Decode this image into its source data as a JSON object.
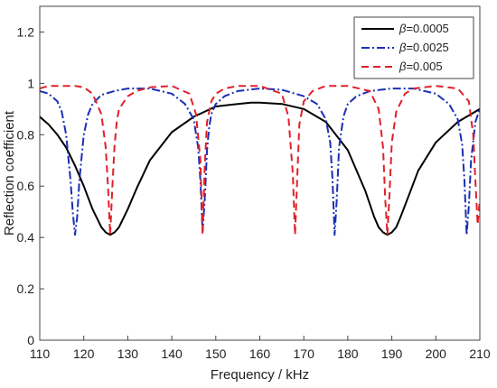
{
  "chart_data": {
    "type": "line",
    "title": "",
    "xlabel": "Frequency / kHz",
    "ylabel": "Reflection coefficient",
    "xlim": [
      110,
      210
    ],
    "ylim": [
      0,
      1.3
    ],
    "xticks": [
      110,
      120,
      130,
      140,
      150,
      160,
      170,
      180,
      190,
      200,
      210
    ],
    "yticks": [
      0,
      0.2,
      0.4,
      0.6,
      0.8,
      1,
      1.2
    ],
    "xtick_labels": [
      "110",
      "120",
      "130",
      "140",
      "150",
      "160",
      "170",
      "180",
      "190",
      "200",
      "210"
    ],
    "ytick_labels": [
      "0",
      "0.2",
      "0.4",
      "0.6",
      "0.8",
      "1",
      "1.2"
    ],
    "grid": false,
    "legend_position": "top-right",
    "series": [
      {
        "name": "β=0.0005",
        "legend_symbol": "β",
        "legend_value": "=0.0005",
        "color": "#000000",
        "dash": "solid",
        "x": [
          110,
          112,
          114,
          116,
          118,
          120,
          122,
          124,
          125,
          126,
          127,
          128,
          130,
          132,
          135,
          140,
          145,
          150,
          155,
          158,
          160,
          165,
          170,
          175,
          180,
          184,
          186,
          187,
          188,
          189,
          190,
          191,
          192,
          194,
          196,
          200,
          205,
          210
        ],
        "y": [
          0.87,
          0.84,
          0.8,
          0.75,
          0.68,
          0.6,
          0.51,
          0.44,
          0.42,
          0.41,
          0.42,
          0.44,
          0.51,
          0.59,
          0.7,
          0.81,
          0.87,
          0.91,
          0.92,
          0.925,
          0.925,
          0.92,
          0.9,
          0.85,
          0.74,
          0.58,
          0.48,
          0.44,
          0.42,
          0.41,
          0.42,
          0.44,
          0.48,
          0.57,
          0.66,
          0.77,
          0.85,
          0.9
        ]
      },
      {
        "name": "β=0.0025",
        "legend_symbol": "β",
        "legend_value": "=0.0025",
        "color": "#1a2fb5",
        "dash": "dashdot",
        "x": [
          110,
          112,
          114,
          115,
          116,
          117,
          117.5,
          118,
          118.5,
          119,
          120,
          121,
          122,
          124,
          127,
          130,
          135,
          140,
          143,
          145,
          146,
          146.5,
          147,
          147.5,
          148,
          148.5,
          149,
          150,
          152,
          155,
          160,
          165,
          170,
          173,
          175,
          176,
          176.5,
          177,
          177.5,
          178,
          179,
          180,
          182,
          185,
          190,
          195,
          200,
          203,
          205,
          206,
          206.5,
          207,
          207.5,
          208,
          209,
          210
        ],
        "y": [
          0.97,
          0.96,
          0.93,
          0.89,
          0.8,
          0.62,
          0.5,
          0.41,
          0.48,
          0.62,
          0.8,
          0.88,
          0.92,
          0.955,
          0.97,
          0.98,
          0.98,
          0.96,
          0.92,
          0.86,
          0.75,
          0.62,
          0.42,
          0.55,
          0.74,
          0.83,
          0.88,
          0.92,
          0.95,
          0.97,
          0.98,
          0.975,
          0.95,
          0.92,
          0.86,
          0.77,
          0.63,
          0.41,
          0.55,
          0.75,
          0.87,
          0.92,
          0.95,
          0.97,
          0.98,
          0.98,
          0.96,
          0.92,
          0.86,
          0.76,
          0.62,
          0.41,
          0.52,
          0.7,
          0.85,
          0.9
        ]
      },
      {
        "name": "β=0.005",
        "legend_symbol": "β",
        "legend_value": "=0.005",
        "color": "#e0202a",
        "dash": "dashed",
        "x": [
          110,
          112,
          115,
          118,
          120,
          122,
          124,
          125,
          125.5,
          126,
          126.5,
          127,
          127.5,
          128,
          130,
          132,
          135,
          140,
          144,
          145.5,
          146.5,
          147,
          147.5,
          148,
          149,
          150,
          152,
          155,
          160,
          165,
          166.5,
          167.5,
          168,
          168.5,
          169,
          170,
          172,
          175,
          180,
          185,
          187,
          188,
          188.5,
          189,
          189.5,
          190,
          191,
          193,
          195,
          200,
          205,
          207.5,
          208.5,
          209,
          209.5,
          210
        ],
        "y": [
          0.98,
          0.99,
          0.99,
          0.99,
          0.985,
          0.96,
          0.88,
          0.75,
          0.6,
          0.41,
          0.6,
          0.76,
          0.85,
          0.9,
          0.95,
          0.97,
          0.985,
          0.99,
          0.96,
          0.88,
          0.7,
          0.41,
          0.68,
          0.85,
          0.93,
          0.96,
          0.98,
          0.99,
          0.99,
          0.96,
          0.87,
          0.65,
          0.41,
          0.63,
          0.84,
          0.93,
          0.97,
          0.99,
          0.99,
          0.97,
          0.9,
          0.75,
          0.55,
          0.41,
          0.58,
          0.77,
          0.89,
          0.96,
          0.98,
          0.99,
          0.98,
          0.93,
          0.8,
          0.62,
          0.45,
          0.55
        ]
      }
    ]
  }
}
